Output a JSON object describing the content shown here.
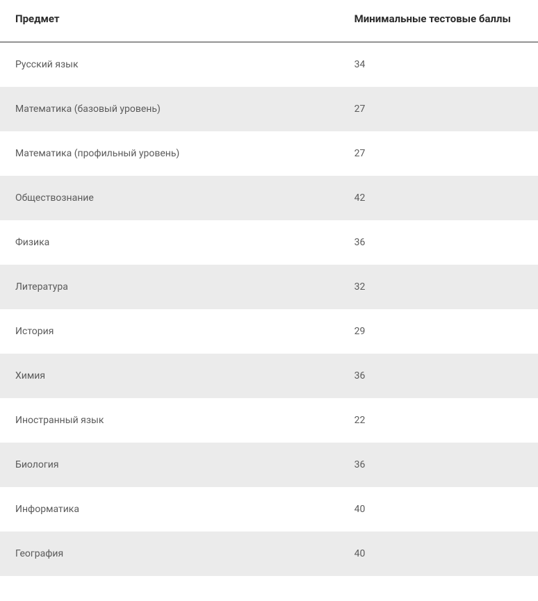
{
  "table": {
    "type": "table",
    "columns": [
      {
        "label": "Предмет",
        "width_pct": 63,
        "align": "left"
      },
      {
        "label": "Минимальные тестовые баллы",
        "width_pct": 37,
        "align": "left"
      }
    ],
    "rows": [
      {
        "subject": "Русский язык",
        "score": "34"
      },
      {
        "subject": "Математика (базовый уровень)",
        "score": "27"
      },
      {
        "subject": "Математика (профильный уровень)",
        "score": "27"
      },
      {
        "subject": "Обществознание",
        "score": "42"
      },
      {
        "subject": "Физика",
        "score": "36"
      },
      {
        "subject": "Литература",
        "score": "32"
      },
      {
        "subject": "История",
        "score": "29"
      },
      {
        "subject": "Химия",
        "score": "36"
      },
      {
        "subject": "Иностранный язык",
        "score": "22"
      },
      {
        "subject": "Биология",
        "score": "36"
      },
      {
        "subject": "Информатика",
        "score": "40"
      },
      {
        "subject": "География",
        "score": "40"
      }
    ],
    "styling": {
      "header_font_size": 15,
      "header_font_weight": 700,
      "header_color": "#2b2b2b",
      "header_border_bottom": "#333333",
      "cell_font_size": 14,
      "cell_color": "#5a5a5a",
      "row_bg_odd": "#ffffff",
      "row_bg_even": "#ebebeb",
      "cell_padding_v": 24,
      "cell_padding_h": 22
    }
  }
}
